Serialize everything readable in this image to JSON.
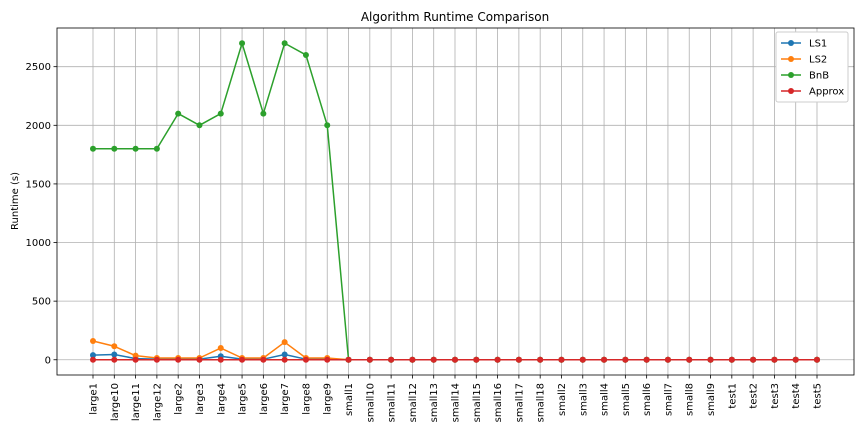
{
  "chart_data": {
    "type": "line",
    "title": "Algorithm Runtime Comparison",
    "xlabel": "",
    "ylabel": "Runtime (s)",
    "ylim": [
      -130,
      2830
    ],
    "yticks": [
      0,
      500,
      1000,
      1500,
      2000,
      2500
    ],
    "grid": true,
    "legend_position": "top-right",
    "categories": [
      "large1",
      "large10",
      "large11",
      "large12",
      "large2",
      "large3",
      "large4",
      "large5",
      "large6",
      "large7",
      "large8",
      "large9",
      "small1",
      "small10",
      "small11",
      "small12",
      "small13",
      "small14",
      "small15",
      "small16",
      "small17",
      "small18",
      "small2",
      "small3",
      "small4",
      "small5",
      "small6",
      "small7",
      "small8",
      "small9",
      "test1",
      "test2",
      "test3",
      "test4",
      "test5"
    ],
    "series": [
      {
        "name": "LS1",
        "color": "#1f77b4",
        "values": [
          40,
          45,
          10,
          5,
          5,
          5,
          30,
          5,
          5,
          45,
          5,
          5,
          0,
          0,
          0,
          0,
          0,
          0,
          0,
          0,
          0,
          0,
          0,
          0,
          0,
          0,
          0,
          0,
          0,
          0,
          0,
          0,
          0,
          0,
          0
        ]
      },
      {
        "name": "LS2",
        "color": "#ff7f0e",
        "values": [
          160,
          115,
          35,
          15,
          15,
          15,
          100,
          15,
          15,
          150,
          15,
          15,
          0,
          0,
          0,
          0,
          0,
          0,
          0,
          0,
          0,
          0,
          0,
          0,
          0,
          0,
          0,
          0,
          0,
          0,
          0,
          0,
          0,
          0,
          0
        ]
      },
      {
        "name": "BnB",
        "color": "#2ca02c",
        "values": [
          1800,
          1800,
          1800,
          1800,
          2100,
          2000,
          2100,
          2700,
          2100,
          2700,
          2600,
          2000,
          0,
          0,
          0,
          0,
          0,
          0,
          0,
          0,
          0,
          0,
          0,
          0,
          0,
          0,
          0,
          0,
          0,
          0,
          0,
          0,
          0,
          0,
          0
        ]
      },
      {
        "name": "Approx",
        "color": "#d62728",
        "values": [
          0,
          0,
          0,
          0,
          0,
          0,
          0,
          0,
          0,
          0,
          0,
          0,
          0,
          0,
          0,
          0,
          0,
          0,
          0,
          0,
          0,
          0,
          0,
          0,
          0,
          0,
          0,
          0,
          0,
          0,
          0,
          0,
          0,
          0,
          0
        ]
      }
    ]
  }
}
